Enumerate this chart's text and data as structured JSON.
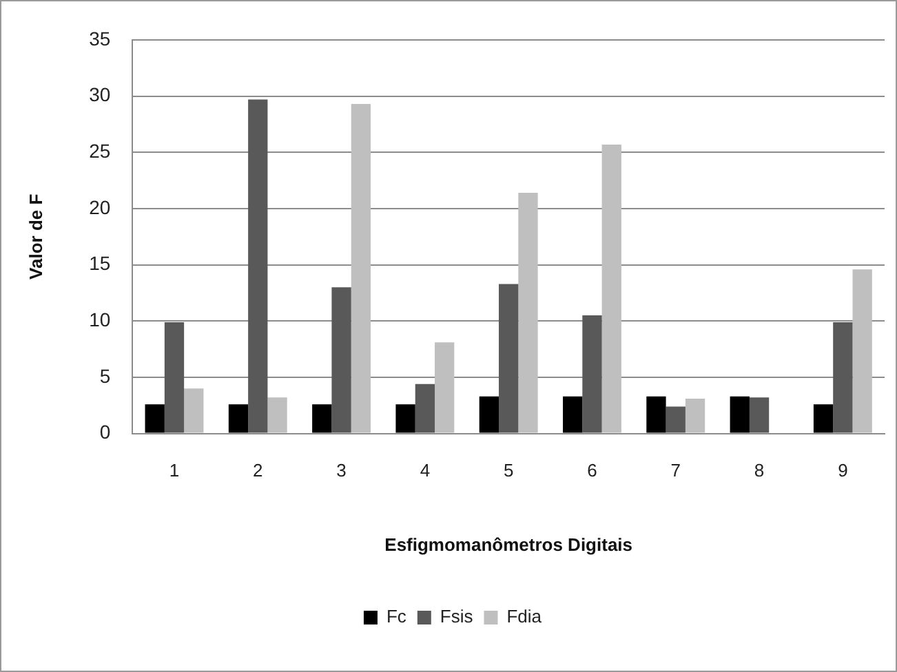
{
  "chart_data": {
    "type": "bar",
    "xlabel": "Esfigmomanômetros Digitais",
    "ylabel": "Valor de F",
    "categories": [
      "1",
      "2",
      "3",
      "4",
      "5",
      "6",
      "7",
      "8",
      "9"
    ],
    "series": [
      {
        "name": "Fc",
        "color": "#000000",
        "values": [
          2.6,
          2.6,
          2.6,
          2.6,
          3.3,
          3.3,
          3.3,
          3.3,
          2.6
        ]
      },
      {
        "name": "Fsis",
        "color": "#595959",
        "values": [
          9.9,
          29.7,
          13.0,
          4.4,
          13.3,
          10.5,
          2.4,
          3.2,
          9.9
        ]
      },
      {
        "name": "Fdia",
        "color": "#bfbfbf",
        "values": [
          4.0,
          3.2,
          29.3,
          8.1,
          21.4,
          25.7,
          3.1,
          null,
          14.6
        ]
      }
    ],
    "ylim": [
      0,
      35
    ],
    "yticks": [
      0,
      5,
      10,
      15,
      20,
      25,
      30,
      35
    ],
    "grid": "y",
    "legend": "bottom"
  }
}
